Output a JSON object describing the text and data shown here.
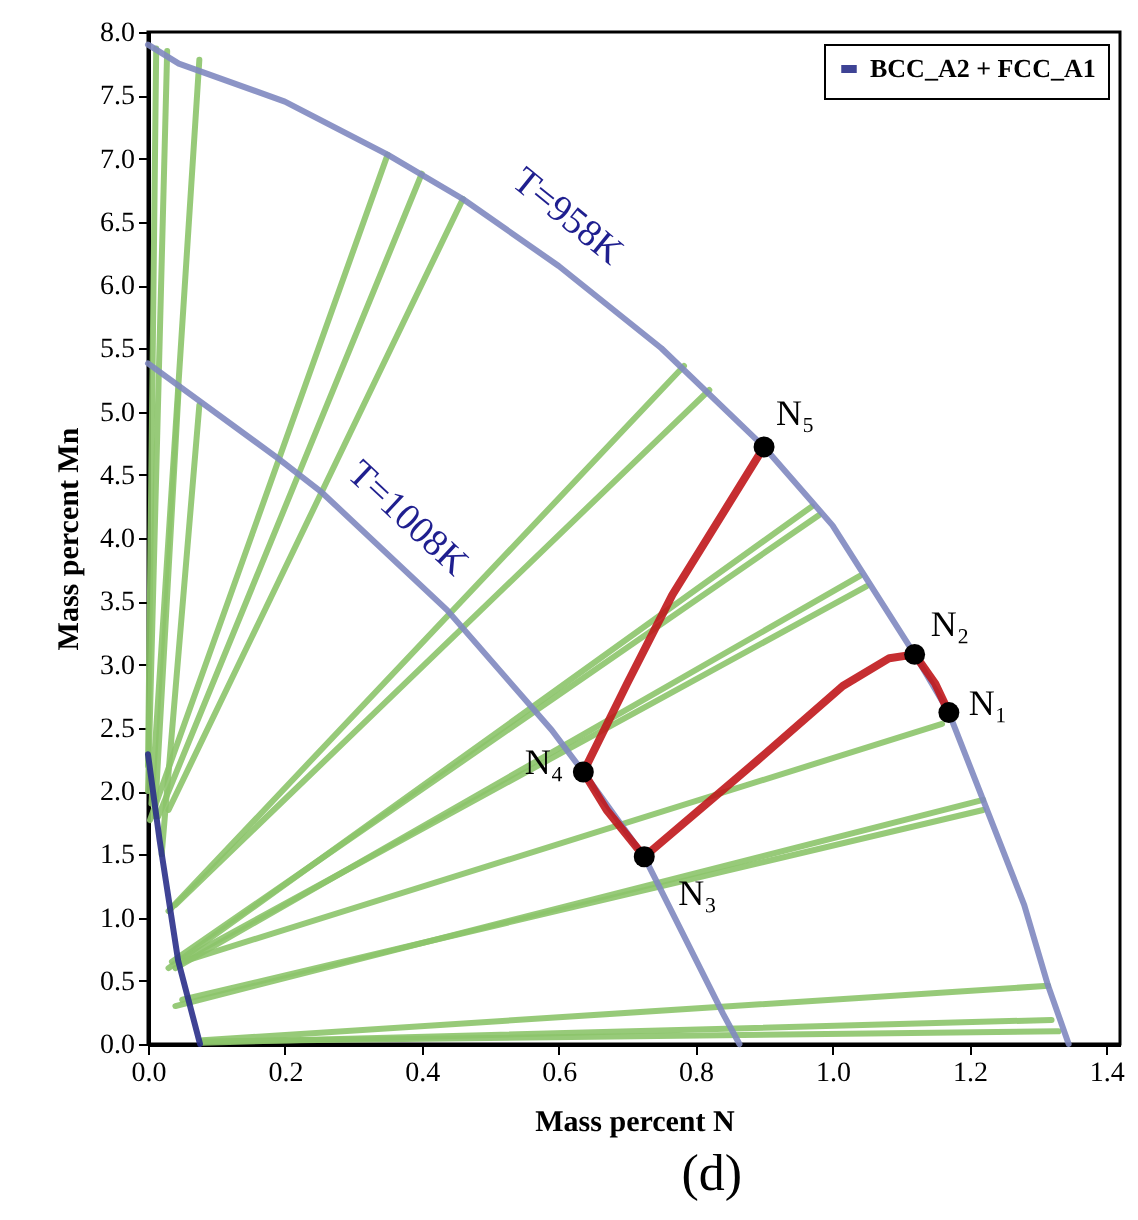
{
  "chart_data": {
    "type": "line",
    "xlabel": "Mass percent N",
    "ylabel": "Mass percent Mn",
    "xlim": [
      0,
      1.42
    ],
    "ylim": [
      0,
      8
    ],
    "xticks": [
      {
        "value": 0,
        "label": "0.0"
      },
      {
        "value": 0.2,
        "label": "0.2"
      },
      {
        "value": 0.4,
        "label": "0.4"
      },
      {
        "value": 0.6,
        "label": "0.6"
      },
      {
        "value": 0.8,
        "label": "0.8"
      },
      {
        "value": 1.0,
        "label": "1.0"
      },
      {
        "value": 1.2,
        "label": "1.2"
      },
      {
        "value": 1.4,
        "label": "1.4"
      }
    ],
    "yticks": [
      {
        "value": 0,
        "label": "0.0"
      },
      {
        "value": 0.5,
        "label": "0.5"
      },
      {
        "value": 1,
        "label": "1.0"
      },
      {
        "value": 1.5,
        "label": "1.5"
      },
      {
        "value": 2,
        "label": "2.0"
      },
      {
        "value": 2.5,
        "label": "2.5"
      },
      {
        "value": 3,
        "label": "3.0"
      },
      {
        "value": 3.5,
        "label": "3.5"
      },
      {
        "value": 4,
        "label": "4.0"
      },
      {
        "value": 4.5,
        "label": "4.5"
      },
      {
        "value": 5,
        "label": "5.0"
      },
      {
        "value": 5.5,
        "label": "5.5"
      },
      {
        "value": 6,
        "label": "6.0"
      },
      {
        "value": 6.5,
        "label": "6.5"
      },
      {
        "value": 7,
        "label": "7.0"
      },
      {
        "value": 7.5,
        "label": "7.5"
      },
      {
        "value": 8,
        "label": "8.0"
      }
    ],
    "grid": false,
    "legend": "top right",
    "series": [
      {
        "color": "#8cc46a",
        "x": [
          0.0,
          0.012
        ],
        "values": [
          2.2,
          7.87
        ]
      },
      {
        "color": "#8cc46a",
        "x": [
          0.0,
          0.028
        ],
        "values": [
          2.0,
          7.85
        ]
      },
      {
        "color": "#8cc46a",
        "x": [
          0.005,
          0.075
        ],
        "values": [
          1.9,
          7.78
        ]
      },
      {
        "color": "#8cc46a",
        "x": [
          0.01,
          0.045
        ],
        "values": [
          1.8,
          5.2
        ]
      },
      {
        "color": "#8cc46a",
        "x": [
          0.02,
          0.075
        ],
        "values": [
          1.5,
          5.05
        ]
      },
      {
        "color": "#8cc46a",
        "x": [
          0.003,
          0.35
        ],
        "values": [
          1.77,
          7.03
        ]
      },
      {
        "color": "#8cc46a",
        "x": [
          0.015,
          0.4
        ],
        "values": [
          1.8,
          6.88
        ]
      },
      {
        "color": "#8cc46a",
        "x": [
          0.03,
          0.46
        ],
        "values": [
          1.85,
          6.68
        ]
      },
      {
        "color": "#8cc46a",
        "x": [
          0.03,
          0.783
        ],
        "values": [
          1.05,
          5.36
        ]
      },
      {
        "color": "#8cc46a",
        "x": [
          0.04,
          0.82
        ],
        "values": [
          1.1,
          5.17
        ]
      },
      {
        "color": "#8cc46a",
        "x": [
          0.03,
          0.97
        ],
        "values": [
          0.6,
          4.25
        ]
      },
      {
        "color": "#8cc46a",
        "x": [
          0.035,
          0.98
        ],
        "values": [
          0.65,
          4.18
        ]
      },
      {
        "color": "#8cc46a",
        "x": [
          0.04,
          1.04
        ],
        "values": [
          0.6,
          3.7
        ]
      },
      {
        "color": "#8cc46a",
        "x": [
          0.045,
          1.05
        ],
        "values": [
          0.65,
          3.62
        ]
      },
      {
        "color": "#8cc46a",
        "x": [
          0.05,
          1.16
        ],
        "values": [
          0.65,
          2.53
        ]
      },
      {
        "color": "#8cc46a",
        "x": [
          0.04,
          1.22
        ],
        "values": [
          0.3,
          1.93
        ]
      },
      {
        "color": "#8cc46a",
        "x": [
          0.05,
          1.22
        ],
        "values": [
          0.35,
          1.85
        ]
      },
      {
        "color": "#8cc46a",
        "x": [
          0.08,
          1.315
        ],
        "values": [
          0.03,
          0.46
        ]
      },
      {
        "color": "#8cc46a",
        "x": [
          0.08,
          1.32
        ],
        "values": [
          0.01,
          0.19
        ]
      },
      {
        "color": "#8cc46a",
        "x": [
          0.08,
          1.33
        ],
        "values": [
          0.02,
          0.1
        ]
      },
      {
        "color": "#8088c0",
        "x": [
          0.0,
          0.045,
          0.2,
          0.35,
          0.46,
          0.6,
          0.75,
          0.9,
          1.0,
          1.12,
          1.17,
          1.22,
          1.28,
          1.315,
          1.345
        ],
        "values": [
          7.9,
          7.75,
          7.45,
          7.03,
          6.68,
          6.15,
          5.5,
          4.72,
          4.1,
          3.08,
          2.62,
          1.93,
          1.1,
          0.46,
          0.0
        ]
      },
      {
        "color": "#8088c0",
        "x": [
          0.0,
          0.19,
          0.254,
          0.437,
          0.59,
          0.636,
          0.725,
          0.84,
          0.864
        ],
        "values": [
          5.38,
          4.63,
          4.36,
          3.43,
          2.48,
          2.15,
          1.48,
          0.24,
          0.0
        ]
      },
      {
        "name": "BCC_A2 + FCC_A1",
        "color": "#2a2f8a",
        "x": [
          0.0,
          0.017,
          0.044,
          0.076
        ],
        "values": [
          2.29,
          1.61,
          0.66,
          0.0
        ]
      },
      {
        "color": "#c0171b",
        "x": [
          0.9,
          0.766,
          0.7,
          0.636,
          0.67,
          0.725,
          0.89,
          1.015,
          1.083,
          1.12,
          1.15,
          1.17
        ],
        "values": [
          4.72,
          3.55,
          2.85,
          2.15,
          1.85,
          1.48,
          2.24,
          2.83,
          3.05,
          3.08,
          2.85,
          2.62
        ]
      },
      {
        "type": "scatter",
        "marker": "circle",
        "color": "#000000",
        "x": [
          1.17,
          1.12,
          0.725,
          0.636,
          0.9
        ],
        "values": [
          2.62,
          3.08,
          1.48,
          2.15,
          4.72
        ]
      }
    ],
    "annotations": [
      "T=958K",
      "T=1008K",
      {
        "text": "N₁",
        "x": 1.17,
        "y": 2.62
      },
      {
        "text": "N₂",
        "x": 1.12,
        "y": 3.08
      },
      {
        "text": "N₃",
        "x": 0.725,
        "y": 1.48
      },
      {
        "text": "N₄",
        "x": 0.636,
        "y": 2.15
      },
      {
        "text": "N₅",
        "x": 0.9,
        "y": 4.72
      },
      "(d)"
    ]
  }
}
